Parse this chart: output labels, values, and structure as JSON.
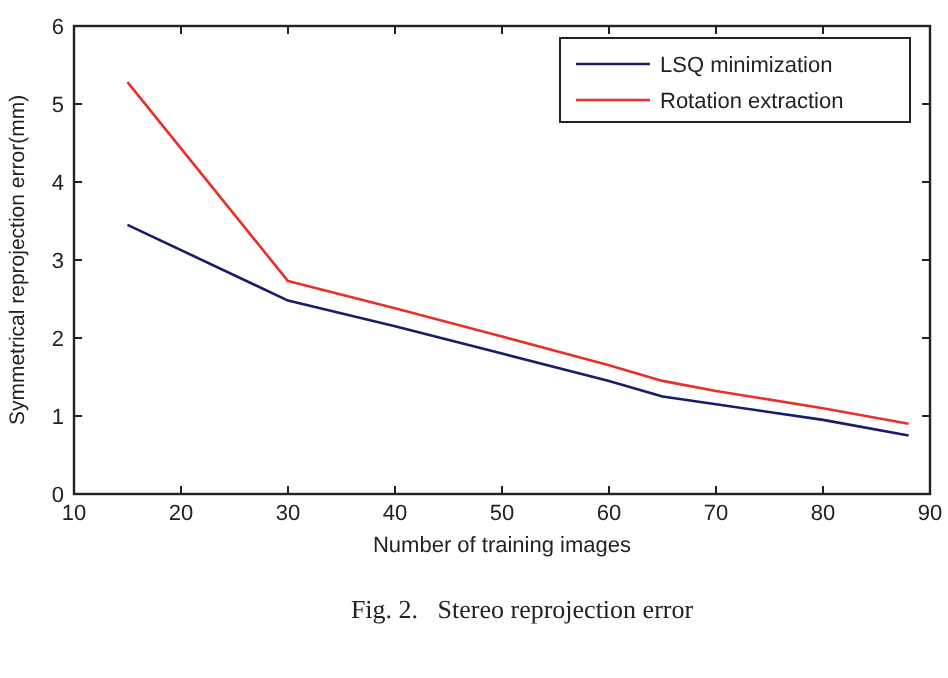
{
  "chart_data": {
    "type": "line",
    "xlabel": "Number of training images",
    "ylabel": "Symmetrical reprojection error(mm)",
    "x": [
      15,
      30,
      40,
      50,
      60,
      65,
      70,
      80,
      88
    ],
    "series": [
      {
        "name": "LSQ minimization",
        "color": "#1a1a6e",
        "values": [
          3.45,
          2.48,
          2.15,
          1.8,
          1.45,
          1.25,
          1.15,
          0.95,
          0.75
        ]
      },
      {
        "name": "Rotation extraction",
        "color": "#e8302a",
        "values": [
          5.28,
          2.73,
          2.38,
          2.02,
          1.65,
          1.45,
          1.32,
          1.1,
          0.9
        ]
      }
    ],
    "xlim": [
      10,
      90
    ],
    "xticks": [
      10,
      20,
      30,
      40,
      50,
      60,
      70,
      80,
      90
    ],
    "ylim": [
      0,
      6
    ],
    "yticks": [
      0,
      1,
      2,
      3,
      4,
      5,
      6
    ],
    "grid": false,
    "legend": "top right",
    "marker": "none",
    "line_style": "solid",
    "annotations": [
      "Fig. 2.   Stereo reprojection error"
    ]
  }
}
